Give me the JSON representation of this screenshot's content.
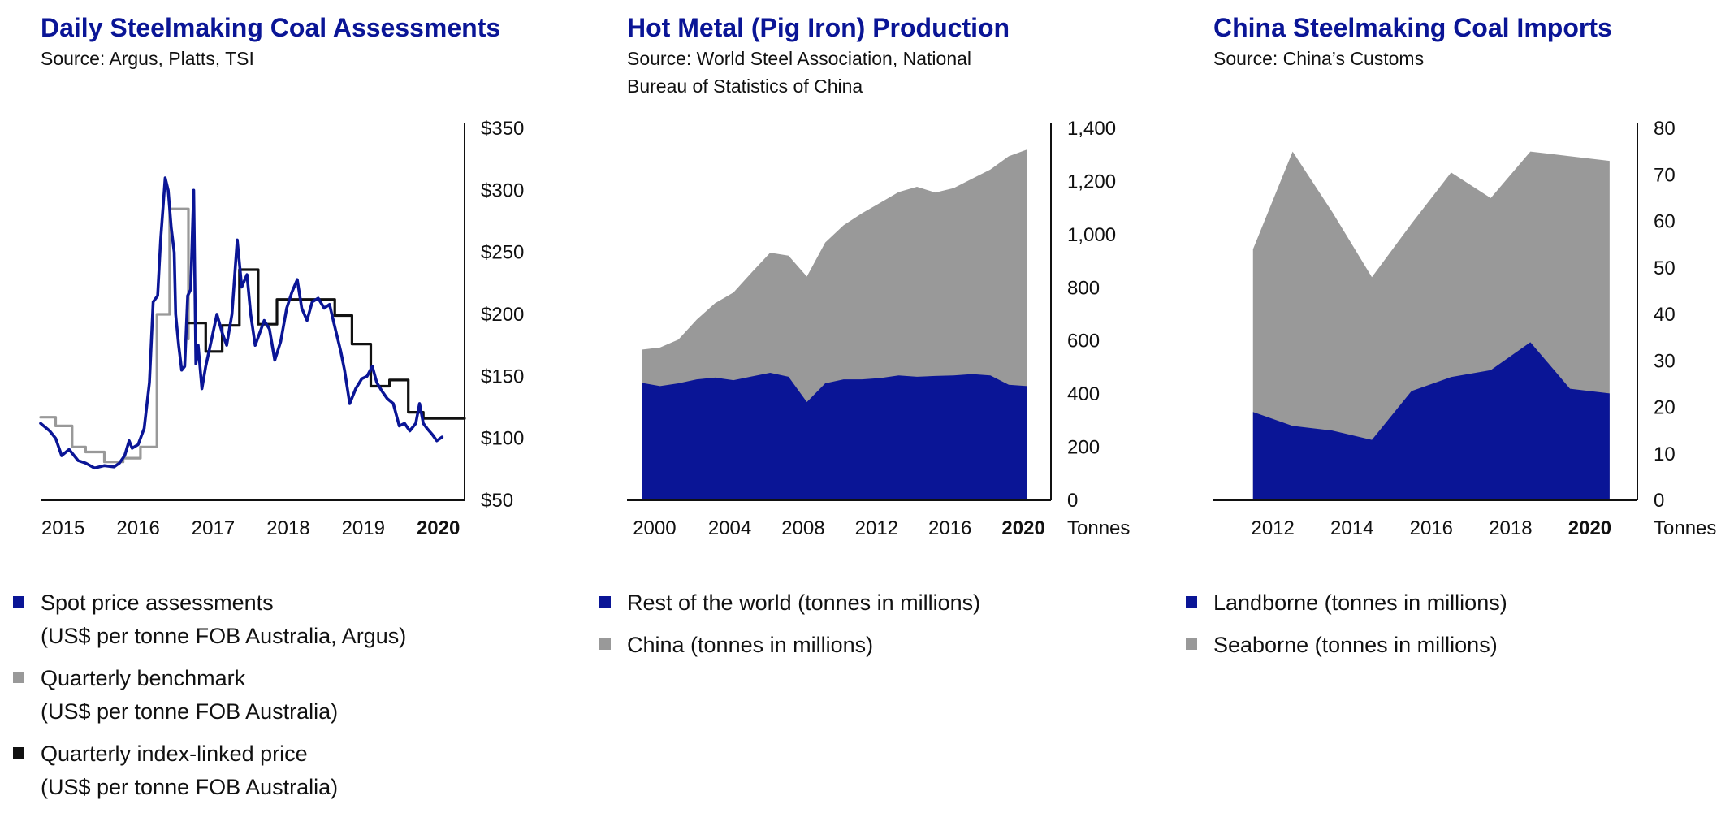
{
  "colors": {
    "navy": "#0a1596",
    "grey": "#999999",
    "black": "#111111",
    "title": "#0a1596"
  },
  "chart_data": [
    {
      "type": "line",
      "title": "Daily Steelmaking Coal Assessments",
      "source": "Source: Argus, Platts, TSI",
      "x_ticks": [
        {
          "value": 2015.3,
          "label": "2015",
          "bold": false
        },
        {
          "value": 2016.3,
          "label": "2016",
          "bold": false
        },
        {
          "value": 2017.3,
          "label": "2017",
          "bold": false
        },
        {
          "value": 2018.3,
          "label": "2018",
          "bold": false
        },
        {
          "value": 2019.3,
          "label": "2019",
          "bold": false
        },
        {
          "value": 2020.3,
          "label": "2020",
          "bold": true
        }
      ],
      "xlim": [
        2015.0,
        2020.65
      ],
      "ylim": [
        50,
        350
      ],
      "y_ticks": [
        {
          "value": 350,
          "label": "$350"
        },
        {
          "value": 300,
          "label": "$300"
        },
        {
          "value": 250,
          "label": "$250"
        },
        {
          "value": 200,
          "label": "$200"
        },
        {
          "value": 150,
          "label": "$150"
        },
        {
          "value": 100,
          "label": "$100"
        },
        {
          "value": 50,
          "label": "$50"
        }
      ],
      "series": [
        {
          "name": "Quarterly benchmark",
          "color": "#999999",
          "step": true,
          "points": [
            [
              2015.0,
              117
            ],
            [
              2015.2,
              117
            ],
            [
              2015.2,
              110
            ],
            [
              2015.42,
              110
            ],
            [
              2015.42,
              93
            ],
            [
              2015.6,
              93
            ],
            [
              2015.6,
              89
            ],
            [
              2015.85,
              89
            ],
            [
              2015.85,
              81
            ],
            [
              2016.1,
              81
            ],
            [
              2016.1,
              84
            ],
            [
              2016.33,
              84
            ],
            [
              2016.33,
              93
            ],
            [
              2016.55,
              93
            ],
            [
              2016.55,
              200
            ],
            [
              2016.72,
              200
            ],
            [
              2016.72,
              285
            ],
            [
              2016.97,
              285
            ],
            [
              2016.97,
              180
            ]
          ]
        },
        {
          "name": "Quarterly index-linked price",
          "color": "#111111",
          "step": true,
          "points": [
            [
              2016.97,
              193
            ],
            [
              2017.2,
              193
            ],
            [
              2017.2,
              170
            ],
            [
              2017.42,
              170
            ],
            [
              2017.42,
              191
            ],
            [
              2017.65,
              191
            ],
            [
              2017.65,
              236
            ],
            [
              2017.9,
              236
            ],
            [
              2017.9,
              192
            ],
            [
              2018.15,
              192
            ],
            [
              2018.15,
              212
            ],
            [
              2018.42,
              212
            ],
            [
              2018.42,
              212
            ],
            [
              2018.92,
              212
            ],
            [
              2018.92,
              199
            ],
            [
              2019.15,
              199
            ],
            [
              2019.15,
              176
            ],
            [
              2019.4,
              176
            ],
            [
              2019.4,
              142
            ],
            [
              2019.65,
              142
            ],
            [
              2019.65,
              147
            ],
            [
              2019.9,
              147
            ],
            [
              2019.9,
              121
            ],
            [
              2020.1,
              121
            ],
            [
              2020.1,
              116
            ],
            [
              2020.65,
              116
            ]
          ]
        },
        {
          "name": "Spot price assessments",
          "color": "#0a1596",
          "step": false,
          "points": [
            [
              2015.0,
              112
            ],
            [
              2015.12,
              106
            ],
            [
              2015.2,
              100
            ],
            [
              2015.28,
              86
            ],
            [
              2015.38,
              91
            ],
            [
              2015.5,
              82
            ],
            [
              2015.6,
              80
            ],
            [
              2015.72,
              76
            ],
            [
              2015.85,
              78
            ],
            [
              2015.98,
              77
            ],
            [
              2016.05,
              80
            ],
            [
              2016.12,
              86
            ],
            [
              2016.18,
              98
            ],
            [
              2016.22,
              92
            ],
            [
              2016.3,
              95
            ],
            [
              2016.38,
              108
            ],
            [
              2016.45,
              145
            ],
            [
              2016.5,
              210
            ],
            [
              2016.56,
              215
            ],
            [
              2016.6,
              260
            ],
            [
              2016.66,
              310
            ],
            [
              2016.7,
              300
            ],
            [
              2016.74,
              270
            ],
            [
              2016.78,
              250
            ],
            [
              2016.8,
              200
            ],
            [
              2016.84,
              175
            ],
            [
              2016.88,
              155
            ],
            [
              2016.92,
              158
            ],
            [
              2016.96,
              215
            ],
            [
              2017.0,
              220
            ],
            [
              2017.04,
              300
            ],
            [
              2017.07,
              160
            ],
            [
              2017.1,
              175
            ],
            [
              2017.15,
              140
            ],
            [
              2017.2,
              158
            ],
            [
              2017.28,
              180
            ],
            [
              2017.35,
              200
            ],
            [
              2017.42,
              185
            ],
            [
              2017.48,
              175
            ],
            [
              2017.55,
              200
            ],
            [
              2017.62,
              260
            ],
            [
              2017.68,
              222
            ],
            [
              2017.75,
              232
            ],
            [
              2017.8,
              200
            ],
            [
              2017.86,
              175
            ],
            [
              2017.92,
              185
            ],
            [
              2017.98,
              195
            ],
            [
              2018.05,
              188
            ],
            [
              2018.12,
              163
            ],
            [
              2018.2,
              178
            ],
            [
              2018.28,
              205
            ],
            [
              2018.35,
              218
            ],
            [
              2018.42,
              228
            ],
            [
              2018.48,
              205
            ],
            [
              2018.55,
              195
            ],
            [
              2018.62,
              210
            ],
            [
              2018.7,
              213
            ],
            [
              2018.78,
              205
            ],
            [
              2018.85,
              208
            ],
            [
              2018.92,
              190
            ],
            [
              2019.0,
              170
            ],
            [
              2019.05,
              155
            ],
            [
              2019.12,
              128
            ],
            [
              2019.2,
              140
            ],
            [
              2019.28,
              148
            ],
            [
              2019.35,
              150
            ],
            [
              2019.42,
              158
            ],
            [
              2019.48,
              145
            ],
            [
              2019.55,
              138
            ],
            [
              2019.62,
              132
            ],
            [
              2019.7,
              128
            ],
            [
              2019.78,
              110
            ],
            [
              2019.85,
              112
            ],
            [
              2019.92,
              106
            ],
            [
              2020.0,
              112
            ],
            [
              2020.05,
              128
            ],
            [
              2020.1,
              112
            ],
            [
              2020.15,
              108
            ],
            [
              2020.22,
              103
            ],
            [
              2020.28,
              98
            ],
            [
              2020.35,
              101
            ]
          ]
        }
      ]
    },
    {
      "type": "area",
      "title": "Hot Metal (Pig Iron) Production",
      "source_lines": [
        "Source: World Steel Association, National",
        "Bureau of Statistics of China"
      ],
      "x": [
        1999,
        2000,
        2001,
        2002,
        2003,
        2004,
        2005,
        2006,
        2007,
        2008,
        2009,
        2010,
        2011,
        2012,
        2013,
        2014,
        2015,
        2016,
        2017,
        2018,
        2019,
        2020
      ],
      "x_ticks": [
        {
          "value": 1999.7,
          "label": "2000",
          "bold": false
        },
        {
          "value": 2003.8,
          "label": "2004",
          "bold": false
        },
        {
          "value": 2007.8,
          "label": "2008",
          "bold": false
        },
        {
          "value": 2011.8,
          "label": "2012",
          "bold": false
        },
        {
          "value": 2015.8,
          "label": "2016",
          "bold": false
        },
        {
          "value": 2019.8,
          "label": "2020",
          "bold": true
        }
      ],
      "xlim": [
        1998.2,
        2021.3
      ],
      "ylim": [
        0,
        1400
      ],
      "y_ticks": [
        {
          "value": 1400,
          "label": "1,400"
        },
        {
          "value": 1200,
          "label": "1,200"
        },
        {
          "value": 1000,
          "label": "1,000"
        },
        {
          "value": 800,
          "label": "800"
        },
        {
          "value": 600,
          "label": "600"
        },
        {
          "value": 400,
          "label": "400"
        },
        {
          "value": 200,
          "label": "200"
        },
        {
          "value": 0,
          "label": "0"
        }
      ],
      "unit_label": "Tonnes",
      "series": [
        {
          "name": "Rest of the world (tonnes in millions)",
          "color": "#0a1596",
          "values": [
            442,
            430,
            440,
            455,
            462,
            452,
            466,
            480,
            465,
            370,
            440,
            455,
            455,
            460,
            470,
            465,
            468,
            470,
            475,
            470,
            435,
            430
          ]
        },
        {
          "name": "China (tonnes in millions)",
          "color": "#999999",
          "values": [
            125,
            145,
            165,
            225,
            280,
            330,
            392,
            452,
            456,
            472,
            530,
            580,
            625,
            660,
            690,
            715,
            690,
            705,
            735,
            775,
            860,
            890
          ]
        }
      ]
    },
    {
      "type": "area",
      "title": "China Steelmaking Coal Imports",
      "source": "Source: China’s Customs",
      "x": [
        2011,
        2012,
        2013,
        2014,
        2015,
        2016,
        2017,
        2018,
        2019,
        2020
      ],
      "x_ticks": [
        {
          "value": 2011.5,
          "label": "2012",
          "bold": false
        },
        {
          "value": 2013.5,
          "label": "2014",
          "bold": false
        },
        {
          "value": 2015.5,
          "label": "2016",
          "bold": false
        },
        {
          "value": 2017.5,
          "label": "2018",
          "bold": false
        },
        {
          "value": 2019.5,
          "label": "2020",
          "bold": true
        }
      ],
      "xlim": [
        2010.0,
        2020.7
      ],
      "ylim": [
        0,
        80
      ],
      "y_ticks": [
        {
          "value": 80,
          "label": "80"
        },
        {
          "value": 70,
          "label": "70"
        },
        {
          "value": 60,
          "label": "60"
        },
        {
          "value": 50,
          "label": "50"
        },
        {
          "value": 40,
          "label": "40"
        },
        {
          "value": 30,
          "label": "30"
        },
        {
          "value": 20,
          "label": "20"
        },
        {
          "value": 10,
          "label": "10"
        },
        {
          "value": 0,
          "label": "0"
        }
      ],
      "unit_label": "Tonnes",
      "series": [
        {
          "name": "Landborne (tonnes in millions)",
          "color": "#0a1596",
          "values": [
            19,
            16,
            15,
            13,
            23.5,
            26.5,
            28,
            34,
            24,
            23
          ]
        },
        {
          "name": "Seaborne (tonnes in millions)",
          "color": "#999999",
          "values": [
            35,
            59,
            47,
            35,
            36,
            44,
            37,
            41,
            50,
            50
          ]
        }
      ]
    }
  ],
  "legends": [
    {
      "items": [
        {
          "color": "#0a1596",
          "lines": [
            "Spot price assessments",
            "(US$ per tonne FOB Australia, Argus)"
          ]
        },
        {
          "color": "#999999",
          "lines": [
            "Quarterly benchmark",
            "(US$ per tonne FOB Australia)"
          ]
        },
        {
          "color": "#111111",
          "lines": [
            "Quarterly index-linked price",
            "(US$ per tonne FOB Australia)"
          ]
        }
      ]
    },
    {
      "items": [
        {
          "color": "#0a1596",
          "lines": [
            "Rest of the world (tonnes in millions)"
          ]
        },
        {
          "color": "#999999",
          "lines": [
            "China (tonnes in millions)"
          ]
        }
      ]
    },
    {
      "items": [
        {
          "color": "#0a1596",
          "lines": [
            "Landborne (tonnes in millions)"
          ]
        },
        {
          "color": "#999999",
          "lines": [
            "Seaborne (tonnes in millions)"
          ]
        }
      ]
    }
  ]
}
